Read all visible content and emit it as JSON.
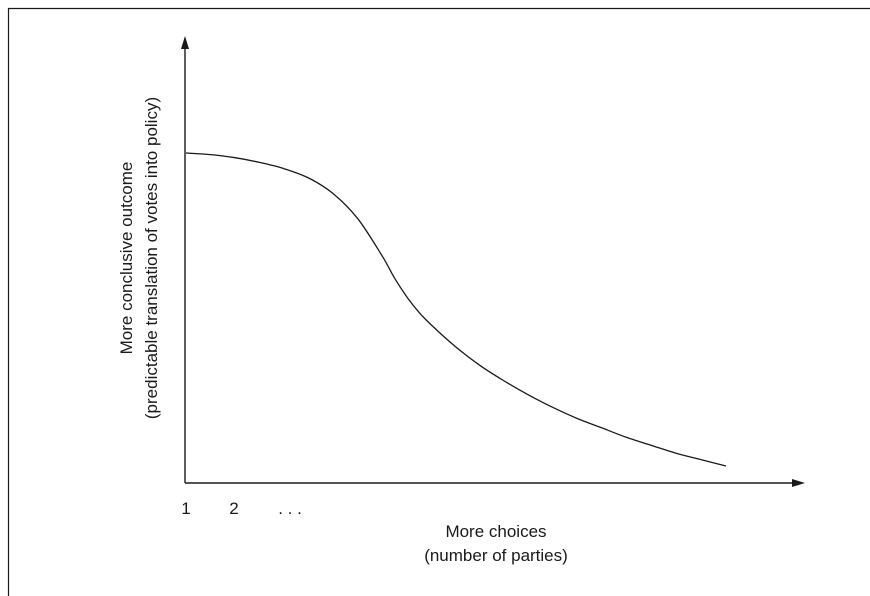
{
  "chart_data": {
    "type": "line",
    "title": "",
    "xlabel": {
      "line1": "More choices",
      "line2": "(number of parties)"
    },
    "ylabel": {
      "line1": "More conclusive outcome",
      "line2": "(predictable translation of votes into policy)"
    },
    "x_ticks": [
      "1",
      "2",
      ". . ."
    ],
    "grid": false,
    "legend": "none",
    "series": [
      {
        "x": [
          1,
          1.5,
          2,
          2.5,
          3,
          3.5,
          4,
          4.5,
          5,
          5.25,
          5.5,
          5.75,
          6,
          6.5,
          7,
          7.5,
          8,
          8.5,
          9,
          9.5,
          10,
          10.5,
          11,
          11.5,
          12
        ],
        "y": [
          0.99,
          0.985,
          0.975,
          0.96,
          0.94,
          0.91,
          0.86,
          0.78,
          0.66,
          0.59,
          0.53,
          0.48,
          0.44,
          0.37,
          0.31,
          0.26,
          0.215,
          0.175,
          0.14,
          0.11,
          0.08,
          0.055,
          0.03,
          0.01,
          -0.01
        ]
      }
    ],
    "colors": {
      "line": "#1a1a1a",
      "axis": "#1a1a1a",
      "frame": "#1a1a1a"
    }
  }
}
